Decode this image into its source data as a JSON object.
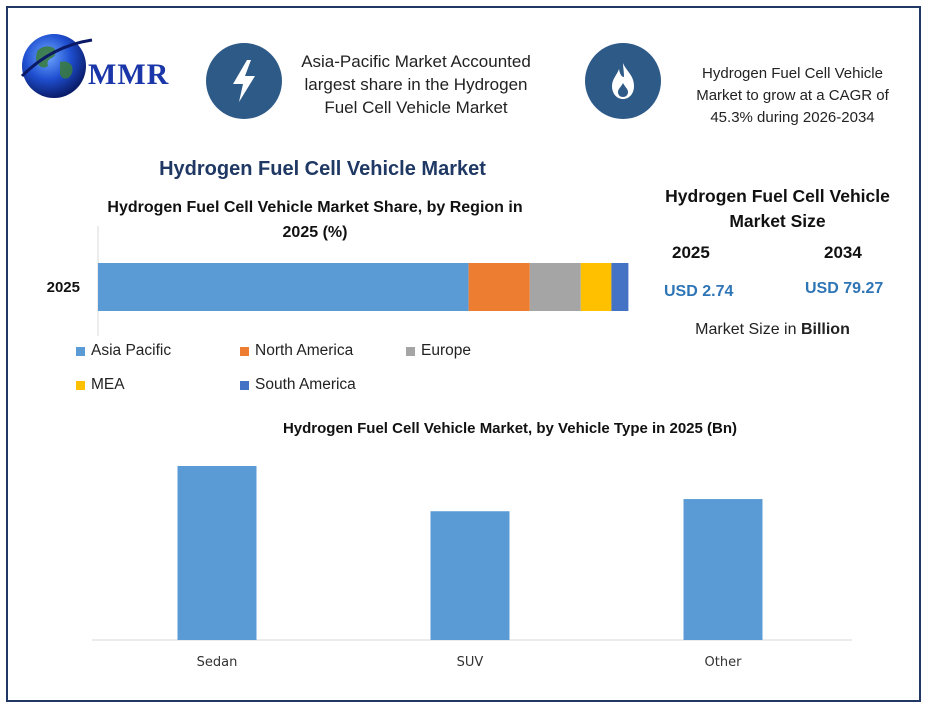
{
  "header": {
    "logo_text": "MMR",
    "highlight_1": "Asia-Pacific Market Accounted largest share in the Hydrogen Fuel Cell Vehicle Market",
    "highlight_1_icon": "lightning-bolt-icon",
    "highlight_2": "Hydrogen Fuel Cell Vehicle Market to grow at a CAGR of 45.3% during 2026-2034",
    "highlight_2_icon": "flame-icon"
  },
  "main_title": "Hydrogen Fuel Cell Vehicle Market",
  "market_size": {
    "title": "Hydrogen Fuel Cell Vehicle Market Size",
    "year_1": "2025",
    "value_1": "USD 2.74",
    "year_2": "2034",
    "value_2": "USD 79.27",
    "note_prefix": "Market Size in ",
    "note_unit": "Billion"
  },
  "colors": {
    "frame": "#1f3864",
    "icon_circle": "#2e5a88",
    "title": "#1f3864",
    "usd": "#2e75b6",
    "bar": "#5b9bd5"
  },
  "chart_data": [
    {
      "type": "bar",
      "orientation": "horizontal",
      "stacked": true,
      "title": "Hydrogen Fuel Cell Vehicle Market Share, by Region in 2025 (%)",
      "categories": [
        "2025"
      ],
      "xlim": [
        0,
        100
      ],
      "series": [
        {
          "name": "Asia Pacific",
          "values": [
            54.5
          ],
          "color": "#5b9bd5"
        },
        {
          "name": "North America",
          "values": [
            9
          ],
          "color": "#ed7d31"
        },
        {
          "name": "Europe",
          "values": [
            7.5
          ],
          "color": "#a5a5a5"
        },
        {
          "name": "MEA",
          "values": [
            4.5
          ],
          "color": "#ffc000"
        },
        {
          "name": "South America",
          "values": [
            2.5
          ],
          "color": "#4472c4"
        }
      ],
      "legend": "bottom",
      "grid": false
    },
    {
      "type": "bar",
      "title": "Hydrogen Fuel Cell Vehicle Market, by Vehicle Type in 2025 (Bn)",
      "categories": [
        "Sedan",
        "SUV",
        "Other"
      ],
      "values": [
        1.0,
        0.74,
        0.81
      ],
      "ylim": [
        0,
        1.0
      ],
      "color": "#5b9bd5",
      "grid": false
    }
  ]
}
